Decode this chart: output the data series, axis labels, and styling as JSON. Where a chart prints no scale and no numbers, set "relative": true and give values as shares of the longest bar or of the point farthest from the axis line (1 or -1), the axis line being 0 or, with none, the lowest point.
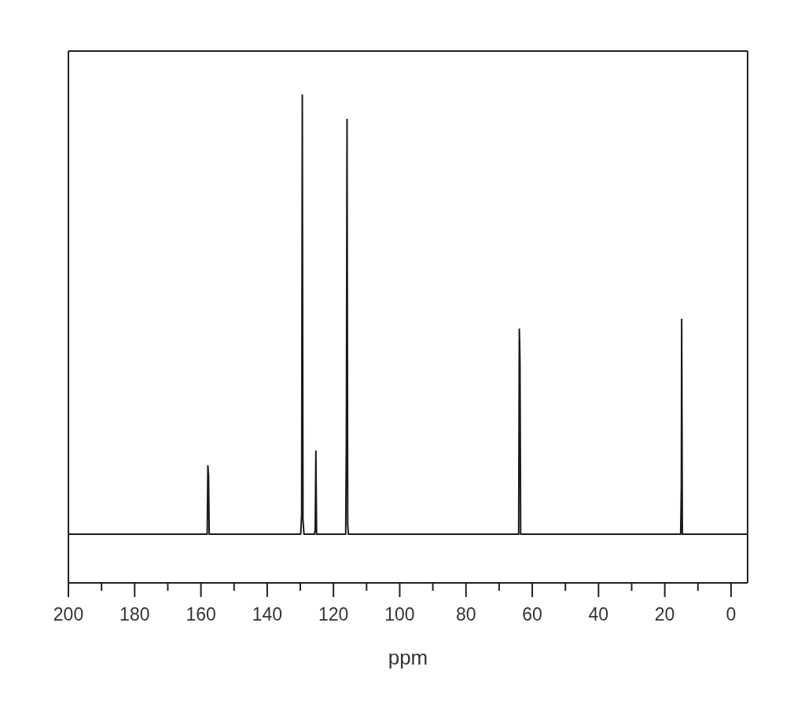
{
  "chart_data": {
    "type": "line",
    "xlabel": "ppm",
    "relative": true,
    "color": "#1a1a1a",
    "marker": "none",
    "line_style": "solid",
    "x": [
      200,
      158.1,
      157.9,
      157.7,
      157.5,
      129.9,
      129.6,
      129.4,
      129.2,
      128.9,
      125.7,
      125.5,
      125.3,
      125.1,
      116.3,
      116.1,
      115.9,
      115.7,
      115.5,
      64.1,
      63.9,
      63.8,
      63.7,
      63.5,
      15.2,
      15.0,
      14.9,
      14.7,
      -5
    ],
    "values": [
      0.1,
      0.1,
      0.24,
      0.22,
      0.1,
      0.1,
      0.14,
      1,
      0.13,
      0.1,
      0.1,
      0.11,
      0.27,
      0.1,
      0.1,
      0.3,
      0.95,
      0.12,
      0.1,
      0.1,
      0.52,
      0.49,
      0.45,
      0.1,
      0.1,
      0.2,
      0.54,
      0.1,
      0.1
    ],
    "xlim": [
      200,
      -5
    ],
    "xticks": [
      200,
      {
        "value": 190,
        "label": null
      },
      180,
      {
        "value": 170,
        "label": null
      },
      160,
      {
        "value": 150,
        "label": null
      },
      140,
      {
        "value": 130,
        "label": null
      },
      120,
      {
        "value": 110,
        "label": null
      },
      100,
      {
        "value": 90,
        "label": null
      },
      80,
      {
        "value": 70,
        "label": null
      },
      60,
      {
        "value": 50,
        "label": null
      },
      40,
      {
        "value": 30,
        "label": null
      },
      20,
      {
        "value": 10,
        "label": null
      },
      0
    ]
  }
}
